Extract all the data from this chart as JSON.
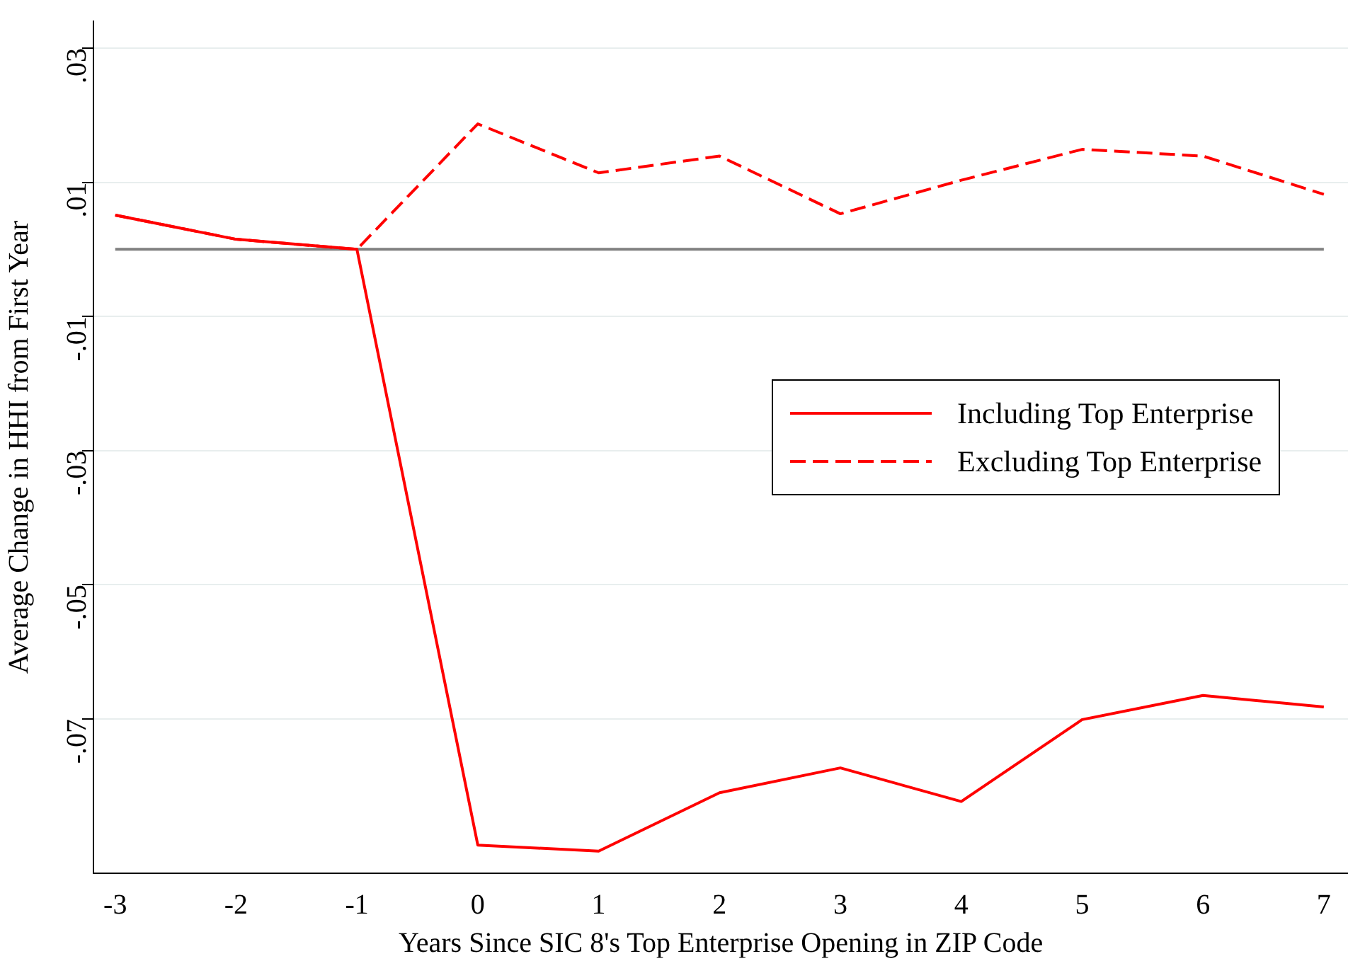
{
  "chart_data": {
    "type": "line",
    "xlabel": "Years Since SIC 8's Top Enterprise Opening in ZIP Code",
    "ylabel": "Average Change in HHI from First Year",
    "x": [
      -3,
      -2,
      -1,
      0,
      1,
      2,
      3,
      4,
      5,
      6,
      7
    ],
    "series": [
      {
        "name": "Including Top Enterprise",
        "color": "#ff0000",
        "line_style": "solid",
        "values": [
          0.0051,
          0.0015,
          0,
          -0.0888,
          -0.0897,
          -0.081,
          -0.0773,
          -0.0823,
          -0.0701,
          -0.0665,
          -0.0682
        ]
      },
      {
        "name": "Excluding Top Enterprise",
        "color": "#ff0000",
        "line_style": "dashed",
        "values": [
          0.0051,
          0.0015,
          0,
          0.0187,
          0.0114,
          0.0139,
          0.0053,
          0.0103,
          0.0149,
          0.0139,
          0.0082
        ]
      }
    ],
    "xlim": [
      -3.18,
      7.2
    ],
    "xticks": [
      -3,
      -2,
      -1,
      0,
      1,
      2,
      3,
      4,
      5,
      6,
      7
    ],
    "ylim": [
      -0.093,
      0.034
    ],
    "yticks": [
      {
        "value": -0.07,
        "label": "-.07"
      },
      {
        "value": -0.05,
        "label": "-.05"
      },
      {
        "value": -0.03,
        "label": "-.03"
      },
      {
        "value": -0.01,
        "label": "-.01"
      },
      {
        "value": 0.01,
        "label": ".01"
      },
      {
        "value": 0.03,
        "label": ".03"
      }
    ],
    "ref_lines": [
      {
        "axis": "y",
        "value": 0,
        "color": "#808080"
      }
    ],
    "grid": "y",
    "legend": "right",
    "marker": "none"
  }
}
